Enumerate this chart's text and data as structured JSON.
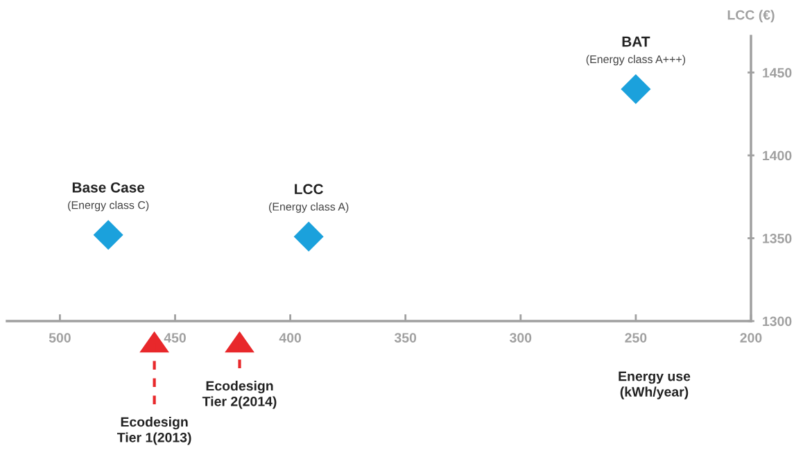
{
  "chart_data": {
    "type": "scatter",
    "xlabel": "Energy use\n(kWh/year)",
    "ylabel": "LCC (€)",
    "x": [
      479,
      392,
      250
    ],
    "series": [
      {
        "color": "#1ba1dc",
        "values": [
          1352,
          1351,
          1440
        ]
      }
    ],
    "marker": "diamond",
    "xlim": [
      523,
      200
    ],
    "xticks": [
      500,
      450,
      400,
      350,
      300,
      250,
      200
    ],
    "ylim": [
      1300,
      1472
    ],
    "yticks": [
      1300,
      1350,
      1400,
      1450
    ],
    "grid": false,
    "annotations": [
      {
        "text": "Base Case",
        "x": 479,
        "y": 1352
      },
      {
        "text": "(Energy class C)",
        "x": 479,
        "y": 1352
      },
      {
        "text": "LCC",
        "x": 392,
        "y": 1351
      },
      {
        "text": "(Energy class A)",
        "x": 392,
        "y": 1351
      },
      {
        "text": "BAT",
        "x": 250,
        "y": 1440
      },
      {
        "text": "(Energy class A+++)",
        "x": 250,
        "y": 1440
      }
    ],
    "ref_lines": [
      {
        "axis": "x",
        "value": 459,
        "label": "Ecodesign\nTier 1(2013)",
        "color": "#e8282b",
        "line_style": "dashed"
      },
      {
        "axis": "x",
        "value": 422,
        "label": "Ecodesign\nTier 2(2014)",
        "color": "#e8282b",
        "line_style": "dashed"
      }
    ]
  }
}
